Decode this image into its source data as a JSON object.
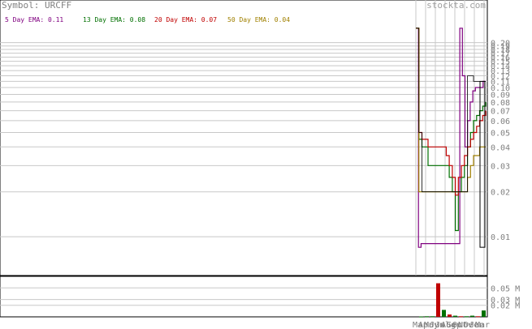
{
  "header": {
    "symbol_label": "Symbol: URCFF",
    "watermark": "stockta.com"
  },
  "legend": [
    {
      "label": "5 Day EMA: 0.11",
      "color": "#800080"
    },
    {
      "label": "13 Day EMA: 0.08",
      "color": "#007000"
    },
    {
      "label": "20 Day EMA: 0.07",
      "color": "#c00000"
    },
    {
      "label": "50 Day EMA: 0.04",
      "color": "#a08000"
    }
  ],
  "chart_data": {
    "type": "line",
    "title": "Symbol: URCFF",
    "yscale": "log",
    "ylim": [
      0.008,
      0.22
    ],
    "price_ticks": [
      "0.20",
      "0.19",
      "0.18",
      "0.17",
      "0.16",
      "0.15",
      "0.14",
      "0.13",
      "0.12",
      "0.11",
      "0.10",
      "0.09",
      "0.08",
      "0.07",
      "0.06",
      "0.05",
      "0.04",
      "0.03",
      "0.02",
      "0.01"
    ],
    "volume_ticks": [
      "0.05 M",
      "0.03 M",
      "0.02 M"
    ],
    "x_labels": [
      "Mar",
      "Apr",
      "May",
      "Jun",
      "Jul",
      "Aug",
      "Sep",
      "Oct",
      "Nov",
      "Dec",
      "Jan",
      "Mar"
    ],
    "series": [
      {
        "name": "5 Day EMA: 0.11",
        "color": "#800080",
        "values": [
          0.25,
          0.0085,
          0.009,
          0.009,
          0.009,
          0.009,
          0.009,
          0.009,
          0.009,
          0.009,
          0.009,
          0.009,
          0.009,
          0.009,
          0.009,
          0.009,
          0.009,
          0.25,
          0.12,
          0.04,
          0.06,
          0.08,
          0.095,
          0.1,
          0.1,
          0.1,
          0.11,
          0.11
        ]
      },
      {
        "name": "13 Day EMA: 0.08",
        "color": "#007000",
        "values": [
          0.25,
          0.045,
          0.04,
          0.04,
          0.03,
          0.03,
          0.03,
          0.03,
          0.03,
          0.03,
          0.03,
          0.025,
          0.02,
          0.011,
          0.02,
          0.025,
          0.03,
          0.04,
          0.05,
          0.06,
          0.065,
          0.07,
          0.075,
          0.08
        ]
      },
      {
        "name": "20 Day EMA: 0.07",
        "color": "#c00000",
        "values": [
          0.25,
          0.05,
          0.045,
          0.045,
          0.04,
          0.04,
          0.04,
          0.04,
          0.04,
          0.04,
          0.035,
          0.03,
          0.025,
          0.019,
          0.025,
          0.03,
          0.035,
          0.04,
          0.045,
          0.05,
          0.055,
          0.06,
          0.065,
          0.07
        ]
      },
      {
        "name": "50 Day EMA: 0.04",
        "color": "#a08000",
        "values": [
          0.25,
          0.02,
          0.02,
          0.02,
          0.02,
          0.02,
          0.02,
          0.02,
          0.02,
          0.02,
          0.02,
          0.02,
          0.02,
          0.02,
          0.02,
          0.02,
          0.02,
          0.025,
          0.03,
          0.035,
          0.035,
          0.04,
          0.04,
          0.04
        ]
      },
      {
        "name": "price",
        "color": "#000000",
        "values": [
          0.25,
          0.05,
          0.02,
          0.02,
          0.02,
          0.02,
          0.02,
          0.02,
          0.02,
          0.02,
          0.02,
          0.02,
          0.02,
          0.02,
          0.02,
          0.02,
          0.02,
          0.12,
          0.12,
          0.11,
          0.11,
          0.11,
          0.11,
          0.11
        ]
      }
    ],
    "volume_bars": [
      {
        "v": 0.0005,
        "color": "#007000"
      },
      {
        "v": 0.001,
        "color": "#007000"
      },
      {
        "v": 0.001,
        "color": "#007000"
      },
      {
        "v": 0.058,
        "color": "#c00000"
      },
      {
        "v": 0.012,
        "color": "#007000"
      },
      {
        "v": 0.004,
        "color": "#c00000"
      },
      {
        "v": 0.002,
        "color": "#007000"
      },
      {
        "v": 0.001,
        "color": "#c00000"
      },
      {
        "v": 0.001,
        "color": "#007000"
      },
      {
        "v": 0.002,
        "color": "#007000"
      },
      {
        "v": 0.001,
        "color": "#c00000"
      },
      {
        "v": 0.011,
        "color": "#007000"
      }
    ],
    "volume_ylim": [
      0,
      0.07
    ]
  }
}
